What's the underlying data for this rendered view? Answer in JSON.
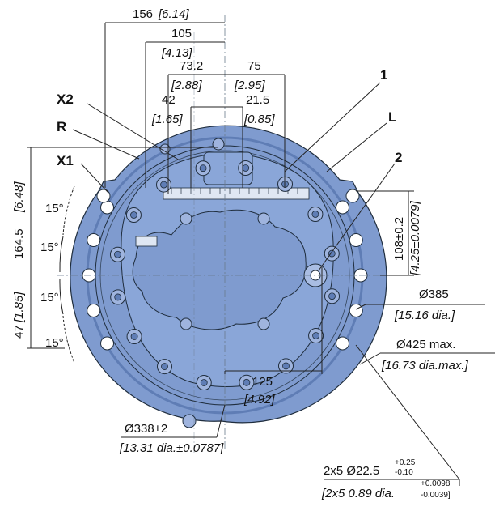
{
  "colors": {
    "body_fill": "#7f9bcf",
    "body_dark": "#5f7db5",
    "outline": "#1f2d3d",
    "hole_fill": "#ffffff"
  },
  "dims": {
    "d156": "156",
    "d156_in": "[6.14]",
    "d105": "105",
    "d105_in": "[4.13]",
    "d73": "73.2",
    "d73_in": "[2.88]",
    "d75": "75",
    "d75_in": "[2.95]",
    "d42": "42",
    "d42_in": "[1.65]",
    "d21": "21.5",
    "d21_in": "[0.85]",
    "d164": "164.5",
    "d164_in": "[6.48]",
    "d47": "47",
    "d47_in": "[1.85]",
    "d108": "108±0.2",
    "d108_in": "[4.25±0.0079]",
    "dia385": "Ø385",
    "dia385_in": "[15.16 dia.]",
    "dia425": "Ø425 max.",
    "dia425_in": "[16.73 dia.max.]",
    "dia338": "Ø338±2",
    "dia338_in": "[13.31 dia.±0.0787]",
    "d125": "125",
    "d125_in": "[4.92]",
    "hole": "2x5 Ø22.5",
    "hole_tol_up": "+0.25",
    "hole_tol_dn": "-0.10",
    "hole_in": "[2x5 0.89 dia.",
    "hole_in_tol_up": "+0.0098",
    "hole_in_tol_dn": "-0.0039]"
  },
  "angles": {
    "a1": "15°",
    "a2": "15°",
    "a3": "15°",
    "a4": "15°"
  },
  "labels": {
    "x2": "X2",
    "r": "R",
    "x1": "X1",
    "one": "1",
    "l": "L",
    "two": "2"
  }
}
